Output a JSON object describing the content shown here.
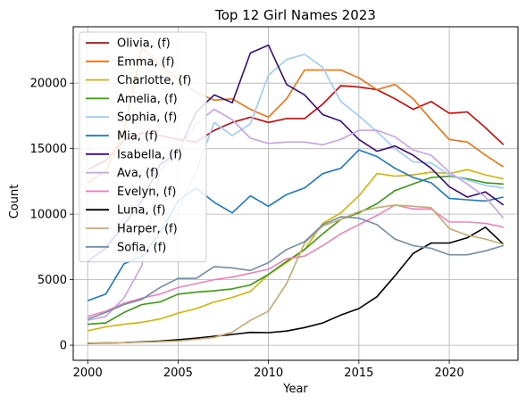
{
  "chart_data": {
    "type": "line",
    "title": "Top 12 Girl Names 2023",
    "xlabel": "Year",
    "ylabel": "Count",
    "xlim": [
      1999.2,
      2023.8
    ],
    "ylim": [
      -1150,
      24300
    ],
    "xticks": [
      2000,
      2005,
      2010,
      2015,
      2020
    ],
    "yticks": [
      0,
      5000,
      10000,
      15000,
      20000
    ],
    "grid": true,
    "legend_position": "top-left",
    "x": [
      2000,
      2001,
      2002,
      2003,
      2004,
      2005,
      2006,
      2007,
      2008,
      2009,
      2010,
      2011,
      2012,
      2013,
      2014,
      2015,
      2016,
      2017,
      2018,
      2019,
      2020,
      2021,
      2022,
      2023
    ],
    "series": [
      {
        "name": "Olivia, (f)",
        "color": "#d40000",
        "values": [
          13400,
          14100,
          15600,
          16200,
          16000,
          15700,
          15500,
          16400,
          17000,
          17400,
          17000,
          17300,
          17300,
          18400,
          19800,
          19700,
          19500,
          18800,
          18000,
          18600,
          17700,
          17800,
          16600,
          15300
        ]
      },
      {
        "name": "Emma, (f)",
        "color": "#f07010",
        "values": [
          12400,
          13300,
          16300,
          22700,
          21400,
          20300,
          19300,
          18700,
          18800,
          18000,
          17400,
          18800,
          21000,
          21000,
          21000,
          20400,
          19500,
          19900,
          18800,
          17200,
          15700,
          15500,
          14500,
          13600
        ]
      },
      {
        "name": "Charlotte, (f)",
        "color": "#d2b400",
        "values": [
          1100,
          1400,
          1600,
          1750,
          2000,
          2450,
          2800,
          3300,
          3650,
          4100,
          5400,
          6300,
          7300,
          9300,
          10100,
          11400,
          13100,
          12900,
          13000,
          13200,
          13100,
          13400,
          13000,
          12700
        ]
      },
      {
        "name": "Amelia, (f)",
        "color": "#3a9a10",
        "values": [
          1600,
          1700,
          2500,
          3100,
          3300,
          3900,
          4050,
          4150,
          4300,
          4600,
          5400,
          6400,
          7300,
          8500,
          9600,
          10100,
          10800,
          11800,
          12300,
          12800,
          12900,
          12700,
          12400,
          12300
        ]
      },
      {
        "name": "Sophia, (f)",
        "color": "#99ccff",
        "values": [
          6300,
          7600,
          9700,
          10100,
          9900,
          10300,
          13300,
          17000,
          16000,
          16900,
          20600,
          21800,
          22200,
          21200,
          18600,
          17500,
          16300,
          15000,
          14000,
          13900,
          13000,
          12600,
          12200,
          12000
        ]
      },
      {
        "name": "Mia, (f)",
        "color": "#1878c8",
        "values": [
          3400,
          3900,
          6200,
          6800,
          8600,
          11000,
          12000,
          10900,
          10100,
          11400,
          10600,
          11500,
          12000,
          13100,
          13500,
          14900,
          14400,
          13500,
          12800,
          12400,
          11200,
          11100,
          11000,
          11300
        ]
      },
      {
        "name": "Isabella, (f)",
        "color": "#3c0a7a",
        "values": [
          6400,
          7400,
          9200,
          11000,
          13800,
          14700,
          17800,
          19100,
          18500,
          22300,
          22900,
          19900,
          19100,
          17600,
          17100,
          15700,
          14800,
          15200,
          14500,
          13500,
          12100,
          11300,
          11700,
          10700
        ]
      },
      {
        "name": "Ava, (f)",
        "color": "#c9a0ea",
        "values": [
          1900,
          2200,
          3600,
          6100,
          13300,
          14900,
          16900,
          18000,
          17200,
          15800,
          15400,
          15500,
          15500,
          15300,
          15700,
          16400,
          16400,
          15900,
          14900,
          14500,
          13200,
          12300,
          11300,
          9700
        ]
      },
      {
        "name": "Evelyn, (f)",
        "color": "#f080c0",
        "values": [
          2200,
          2600,
          3200,
          3600,
          3900,
          4400,
          4700,
          5000,
          5200,
          5500,
          5800,
          6600,
          6800,
          7600,
          8500,
          9200,
          9900,
          10700,
          10400,
          10400,
          9400,
          9400,
          9300,
          9000
        ]
      },
      {
        "name": "Luna, (f)",
        "color": "#000000",
        "values": [
          150,
          170,
          200,
          260,
          320,
          420,
          540,
          680,
          820,
          980,
          960,
          1080,
          1350,
          1700,
          2300,
          2800,
          3700,
          5300,
          7000,
          7800,
          7800,
          8200,
          9000,
          7700
        ]
      },
      {
        "name": "Harper, (f)",
        "color": "#c8aa70",
        "values": [
          170,
          180,
          200,
          230,
          270,
          330,
          450,
          600,
          1000,
          1900,
          2600,
          4700,
          7800,
          9100,
          9600,
          10200,
          10500,
          10700,
          10600,
          10500,
          8900,
          8400,
          8100,
          7700
        ]
      },
      {
        "name": "Sofia, (f)",
        "color": "#6f8fa8",
        "values": [
          2000,
          2500,
          3100,
          3500,
          4400,
          5100,
          5100,
          6000,
          5900,
          5700,
          6300,
          7300,
          7900,
          9200,
          9800,
          9700,
          9200,
          8100,
          7600,
          7400,
          6900,
          6900,
          7200,
          7600
        ]
      }
    ]
  }
}
